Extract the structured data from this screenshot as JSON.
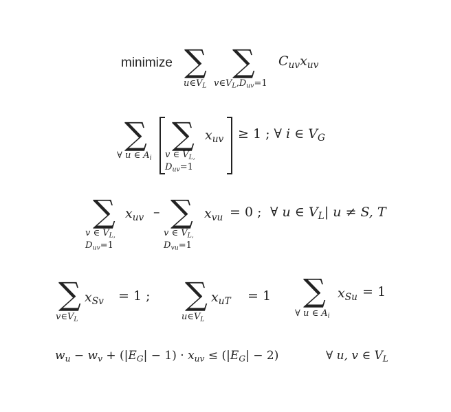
{
  "objective": {
    "minimize": "minimize",
    "sum_index_1": "u∈V",
    "sum_index_1_sub": "L",
    "sum_index_2a": "v∈V",
    "sum_index_2a_sub": "L",
    "sum_index_2b": ",D",
    "sum_index_2b_sub": "uv",
    "sum_index_2c": "=1",
    "cost": "C",
    "cost_sub": "uv",
    "var": "x",
    "var_sub": "uv"
  },
  "constraint1": {
    "outer_index": "∀ u ∈ A",
    "outer_index_sub": "i",
    "inner_index_line1": "v ∈ V",
    "inner_index_line1_sub": "L,",
    "inner_index_line2": "D",
    "inner_index_line2_sub": "uv",
    "inner_index_line2_tail": "=1",
    "var": "x",
    "var_sub": "uv",
    "rhs": "≥ 1 ; ∀ ",
    "rhs_i": "i",
    "rhs_in": " ∈ ",
    "rhs_set": "V",
    "rhs_set_sub": "G"
  },
  "constraint2": {
    "index1_line1": "v ∈ V",
    "index1_line1_sub": "L,",
    "index1_line2": "D",
    "index1_line2_sub": "uv",
    "index1_line2_tail": "=1",
    "var1": "x",
    "var1_sub": "uv",
    "minus": "–",
    "index2_line1": "v ∈ V",
    "index2_line1_sub": "L,",
    "index2_line2": "D",
    "index2_line2_sub": "vu",
    "index2_line2_tail": "=1",
    "var2": "x",
    "var2_sub": "vu",
    "eq": "= 0 ;",
    "cond_forall": "∀ ",
    "cond_u": "u",
    "cond_in": " ∈ ",
    "cond_set": "V",
    "cond_set_sub": "L",
    "cond_bar": "| ",
    "cond_neq": "u",
    "cond_neq_sign": " ≠ ",
    "cond_st": "S, T"
  },
  "constraint3": {
    "a_index": "v∈V",
    "a_index_sub": "L",
    "a_var": "x",
    "a_var_sub": "Sv",
    "a_eq": "= 1 ;",
    "b_index": "u∈V",
    "b_index_sub": "L",
    "b_var": "x",
    "b_var_sub": "uT",
    "b_eq": "= 1",
    "c_index": "∀ u ∈ A",
    "c_index_sub": "i",
    "c_var": "x",
    "c_var_sub": "Su",
    "c_eq": "= 1"
  },
  "constraint4": {
    "w1": "w",
    "w1_sub": "u",
    "minus": " − ",
    "w2": "w",
    "w2_sub": "v",
    "plus_open": " + (|",
    "E1": "E",
    "E1_sub": "G",
    "mid1": "| − 1) · ",
    "x": "x",
    "x_sub": "uv",
    "leq": " ≤  (|",
    "E2": "E",
    "E2_sub": "G",
    "mid2": "| − 2)",
    "forall": "∀ ",
    "uv": "u, v",
    "in": "  ∈ ",
    "V": "V",
    "V_sub": "L"
  }
}
